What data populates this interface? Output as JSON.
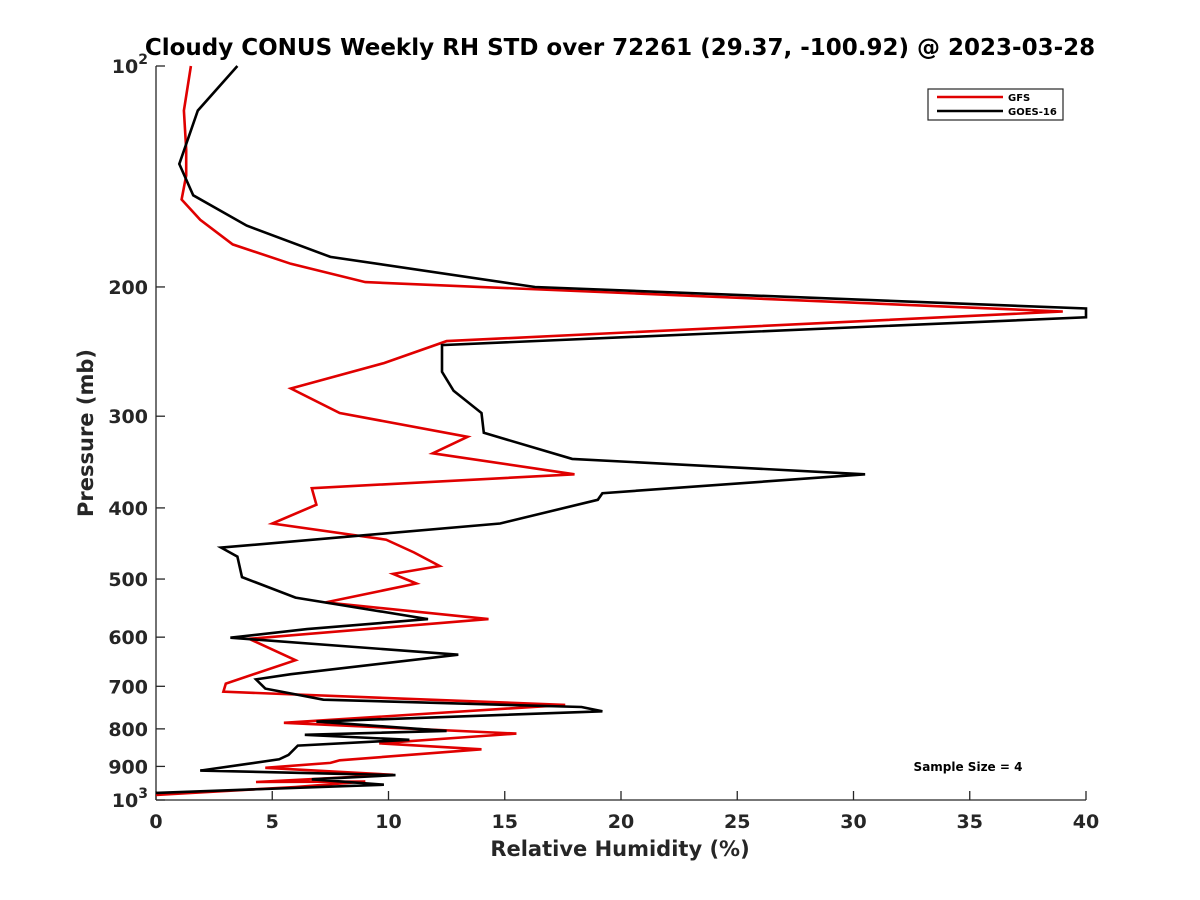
{
  "chart_data": {
    "type": "line",
    "title": "Cloudy CONUS Weekly RH STD over 72261 (29.37, -100.92) @ 2023-03-28",
    "xlabel": "Relative Humidity (%)",
    "ylabel": "Pressure (mb)",
    "xlim": [
      0,
      40
    ],
    "ylim": [
      100,
      1000
    ],
    "yscale": "log",
    "y_reversed": true,
    "grid": false,
    "legend_position": "top-right",
    "xticks": [
      "0",
      "5",
      "10",
      "15",
      "20",
      "25",
      "30",
      "35",
      "40"
    ],
    "yticks": [
      {
        "value": 100,
        "base": "10",
        "exp": "2"
      },
      {
        "value": 200,
        "label": "200"
      },
      {
        "value": 300,
        "label": "300"
      },
      {
        "value": 400,
        "label": "400"
      },
      {
        "value": 500,
        "label": "500"
      },
      {
        "value": 600,
        "label": "600"
      },
      {
        "value": 700,
        "label": "700"
      },
      {
        "value": 800,
        "label": "800"
      },
      {
        "value": 900,
        "label": "900"
      },
      {
        "value": 1000,
        "base": "10",
        "exp": "3"
      }
    ],
    "annotation": "Sample Size = 4",
    "series": [
      {
        "name": "GFS",
        "color": "#e00000",
        "points": [
          [
            1.5,
            100
          ],
          [
            1.2,
            115
          ],
          [
            1.3,
            130
          ],
          [
            1.3,
            141
          ],
          [
            1.1,
            152
          ],
          [
            1.9,
            162
          ],
          [
            3.3,
            175
          ],
          [
            5.8,
            186
          ],
          [
            9.0,
            197
          ],
          [
            39.0,
            216
          ],
          [
            12.5,
            237
          ],
          [
            9.8,
            254
          ],
          [
            5.8,
            275
          ],
          [
            7.9,
            297
          ],
          [
            13.4,
            320
          ],
          [
            11.9,
            337
          ],
          [
            18.0,
            360
          ],
          [
            6.7,
            376
          ],
          [
            6.9,
            396
          ],
          [
            5.0,
            420
          ],
          [
            9.9,
            442
          ],
          [
            11.1,
            460
          ],
          [
            12.2,
            480
          ],
          [
            10.2,
            492
          ],
          [
            11.2,
            507
          ],
          [
            7.3,
            538
          ],
          [
            14.3,
            567
          ],
          [
            4.0,
            603
          ],
          [
            6.0,
            645
          ],
          [
            3.0,
            694
          ],
          [
            2.9,
            712
          ],
          [
            17.6,
            742
          ],
          [
            5.5,
            785
          ],
          [
            15.5,
            812
          ],
          [
            9.6,
            837
          ],
          [
            14.0,
            853
          ],
          [
            7.9,
            883
          ],
          [
            7.5,
            890
          ],
          [
            4.7,
            904
          ],
          [
            10.2,
            924
          ],
          [
            4.3,
            945
          ],
          [
            9.0,
            944
          ],
          [
            6.0,
            960
          ],
          [
            0.0,
            984
          ]
        ]
      },
      {
        "name": "GOES-16",
        "color": "#000000",
        "points": [
          [
            3.5,
            100
          ],
          [
            1.8,
            115
          ],
          [
            1.0,
            136
          ],
          [
            1.6,
            150
          ],
          [
            3.9,
            165
          ],
          [
            7.5,
            182
          ],
          [
            16.3,
            200
          ],
          [
            40.0,
            214
          ],
          [
            40.0,
            220
          ],
          [
            12.3,
            240
          ],
          [
            12.3,
            261
          ],
          [
            12.8,
            277
          ],
          [
            14.0,
            297
          ],
          [
            14.1,
            316
          ],
          [
            17.9,
            343
          ],
          [
            30.5,
            360
          ],
          [
            19.2,
            382
          ],
          [
            19.0,
            390
          ],
          [
            14.8,
            420
          ],
          [
            2.8,
            453
          ],
          [
            3.5,
            466
          ],
          [
            3.7,
            497
          ],
          [
            6.0,
            530
          ],
          [
            11.7,
            567
          ],
          [
            6.5,
            585
          ],
          [
            3.2,
            601
          ],
          [
            13.0,
            634
          ],
          [
            5.8,
            674
          ],
          [
            4.3,
            685
          ],
          [
            4.7,
            705
          ],
          [
            7.2,
            730
          ],
          [
            18.3,
            747
          ],
          [
            19.2,
            757
          ],
          [
            6.9,
            782
          ],
          [
            12.5,
            805
          ],
          [
            6.4,
            815
          ],
          [
            10.9,
            828
          ],
          [
            6.1,
            843
          ],
          [
            5.7,
            868
          ],
          [
            5.3,
            880
          ],
          [
            1.9,
            912
          ],
          [
            10.3,
            925
          ],
          [
            6.7,
            937
          ],
          [
            9.8,
            953
          ],
          [
            0.0,
            978
          ]
        ]
      }
    ]
  }
}
